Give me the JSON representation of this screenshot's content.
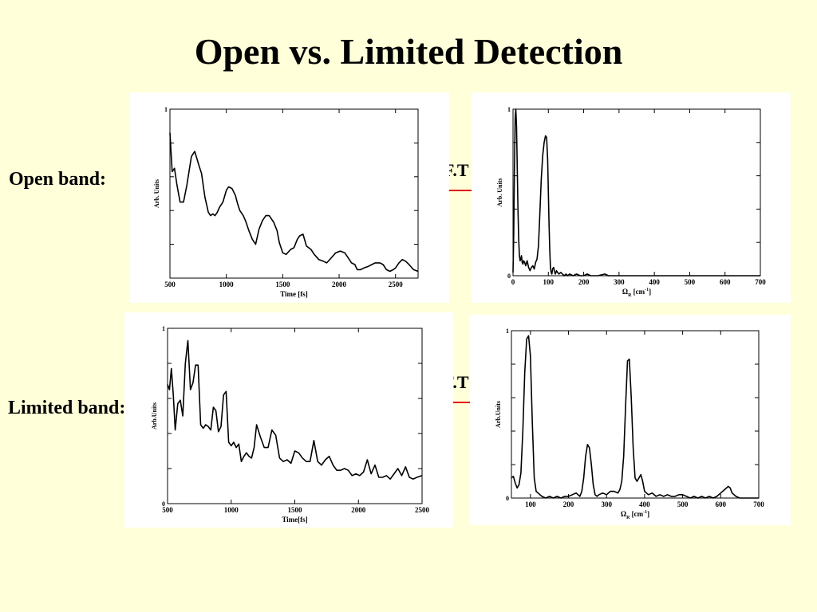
{
  "title": "Open vs. Limited Detection",
  "rows": [
    {
      "label": "Open band:"
    },
    {
      "label": "Limited band:"
    }
  ],
  "transform_label": "F.T",
  "colors": {
    "background": "#ffffd9",
    "arrow": "#e01010",
    "line": "#000000"
  },
  "chart_data": [
    {
      "type": "line",
      "xlabel": "Time [fs]",
      "ylabel": "Arb. Units",
      "xlim": [
        500,
        2700
      ],
      "ylim": [
        0,
        1
      ],
      "xticks": [
        500,
        1000,
        1500,
        2000,
        2500
      ],
      "ytick_labels": [
        "1"
      ],
      "series": [
        {
          "x": [
            500,
            520,
            540,
            560,
            590,
            620,
            650,
            690,
            720,
            760,
            780,
            810,
            840,
            860,
            880,
            900,
            920,
            940,
            970,
            1000,
            1020,
            1050,
            1080,
            1100,
            1120,
            1150,
            1170,
            1200,
            1230,
            1260,
            1290,
            1320,
            1350,
            1380,
            1420,
            1450,
            1470,
            1500,
            1530,
            1570,
            1600,
            1630,
            1650,
            1680,
            1710,
            1750,
            1780,
            1820,
            1860,
            1890,
            1930,
            1970,
            2010,
            2050,
            2080,
            2110,
            2140,
            2160,
            2190,
            2220,
            2260,
            2290,
            2320,
            2360,
            2390,
            2420,
            2450,
            2480,
            2500,
            2530,
            2560,
            2590,
            2620,
            2660,
            2700
          ],
          "y": [
            0.86,
            0.63,
            0.65,
            0.56,
            0.45,
            0.45,
            0.55,
            0.72,
            0.75,
            0.66,
            0.62,
            0.48,
            0.39,
            0.37,
            0.38,
            0.37,
            0.39,
            0.42,
            0.45,
            0.52,
            0.54,
            0.53,
            0.49,
            0.44,
            0.4,
            0.37,
            0.34,
            0.28,
            0.23,
            0.2,
            0.29,
            0.34,
            0.37,
            0.37,
            0.33,
            0.28,
            0.21,
            0.15,
            0.14,
            0.17,
            0.18,
            0.23,
            0.25,
            0.26,
            0.19,
            0.17,
            0.14,
            0.11,
            0.1,
            0.09,
            0.12,
            0.15,
            0.16,
            0.15,
            0.12,
            0.09,
            0.08,
            0.05,
            0.05,
            0.06,
            0.07,
            0.08,
            0.09,
            0.09,
            0.08,
            0.05,
            0.04,
            0.05,
            0.06,
            0.09,
            0.11,
            0.1,
            0.08,
            0.05,
            0.04
          ]
        }
      ]
    },
    {
      "type": "line",
      "xlabel": "ΩR [cm-1]",
      "ylabel": "Arb. Units",
      "xlim": [
        0,
        700
      ],
      "ylim": [
        0,
        1
      ],
      "xticks": [
        0,
        100,
        200,
        300,
        400,
        500,
        600,
        700
      ],
      "ytick_labels": [
        "0",
        "1"
      ],
      "series": [
        {
          "x": [
            0,
            2,
            4,
            6,
            8,
            10,
            12,
            14,
            16,
            18,
            20,
            22,
            24,
            26,
            28,
            30,
            33,
            36,
            40,
            44,
            48,
            52,
            56,
            60,
            64,
            68,
            72,
            76,
            80,
            84,
            88,
            92,
            95,
            98,
            100,
            102,
            104,
            106,
            108,
            110,
            112,
            115,
            118,
            120,
            123,
            126,
            130,
            135,
            140,
            145,
            150,
            155,
            160,
            170,
            180,
            190,
            200,
            210,
            220,
            240,
            260,
            270,
            280,
            300,
            320,
            350,
            380,
            400,
            450,
            500,
            550,
            600,
            650,
            700
          ],
          "y": [
            0.02,
            0.25,
            0.65,
            0.95,
            1.0,
            0.9,
            0.65,
            0.4,
            0.22,
            0.12,
            0.09,
            0.1,
            0.12,
            0.08,
            0.07,
            0.09,
            0.08,
            0.06,
            0.09,
            0.05,
            0.03,
            0.05,
            0.06,
            0.04,
            0.08,
            0.1,
            0.18,
            0.38,
            0.58,
            0.72,
            0.8,
            0.84,
            0.83,
            0.7,
            0.5,
            0.3,
            0.15,
            0.05,
            0.02,
            0.01,
            0.04,
            0.05,
            0.02,
            0.01,
            0.03,
            0.02,
            0.01,
            0.02,
            0.01,
            0.0,
            0.01,
            0.0,
            0.01,
            0.0,
            0.01,
            0.0,
            0.0,
            0.01,
            0.0,
            0.0,
            0.01,
            0.0,
            0.0,
            0.0,
            0.0,
            0.0,
            0.0,
            0.0,
            0.0,
            0.0,
            0.0,
            0.0,
            0.0,
            0.0
          ]
        }
      ]
    },
    {
      "type": "line",
      "xlabel": "Time[fs]",
      "ylabel": "Arb.Units",
      "xlim": [
        500,
        2500
      ],
      "ylim": [
        0,
        1
      ],
      "xticks": [
        500,
        1000,
        1500,
        2000,
        2500
      ],
      "ytick_labels": [
        "0",
        "1"
      ],
      "series": [
        {
          "x": [
            500,
            515,
            530,
            545,
            560,
            580,
            600,
            620,
            640,
            660,
            680,
            700,
            720,
            740,
            760,
            780,
            800,
            820,
            840,
            860,
            880,
            900,
            920,
            940,
            960,
            980,
            1000,
            1020,
            1040,
            1060,
            1080,
            1100,
            1120,
            1140,
            1160,
            1180,
            1200,
            1230,
            1260,
            1290,
            1320,
            1350,
            1380,
            1410,
            1440,
            1470,
            1500,
            1530,
            1560,
            1590,
            1620,
            1650,
            1680,
            1710,
            1740,
            1770,
            1800,
            1830,
            1860,
            1890,
            1920,
            1950,
            1980,
            2010,
            2040,
            2070,
            2100,
            2130,
            2160,
            2190,
            2220,
            2250,
            2280,
            2310,
            2340,
            2370,
            2400,
            2430,
            2460,
            2500
          ],
          "y": [
            0.68,
            0.65,
            0.77,
            0.62,
            0.42,
            0.57,
            0.59,
            0.5,
            0.8,
            0.93,
            0.65,
            0.69,
            0.79,
            0.79,
            0.45,
            0.43,
            0.45,
            0.44,
            0.42,
            0.55,
            0.53,
            0.41,
            0.44,
            0.62,
            0.64,
            0.35,
            0.33,
            0.35,
            0.32,
            0.34,
            0.24,
            0.27,
            0.29,
            0.27,
            0.26,
            0.32,
            0.45,
            0.38,
            0.32,
            0.32,
            0.42,
            0.39,
            0.26,
            0.24,
            0.25,
            0.23,
            0.3,
            0.29,
            0.26,
            0.24,
            0.24,
            0.36,
            0.24,
            0.22,
            0.25,
            0.27,
            0.22,
            0.19,
            0.19,
            0.2,
            0.19,
            0.16,
            0.17,
            0.16,
            0.18,
            0.25,
            0.17,
            0.22,
            0.15,
            0.15,
            0.16,
            0.14,
            0.17,
            0.2,
            0.16,
            0.21,
            0.15,
            0.14,
            0.15,
            0.16
          ]
        }
      ]
    },
    {
      "type": "line",
      "xlabel": "ΩR [cm-1]",
      "ylabel": "Arb.Units",
      "xlim": [
        50,
        700
      ],
      "ylim": [
        0,
        1
      ],
      "xticks": [
        100,
        200,
        300,
        400,
        500,
        600,
        700
      ],
      "ytick_labels": [
        "0",
        "1"
      ],
      "series": [
        {
          "x": [
            50,
            55,
            60,
            65,
            70,
            75,
            80,
            85,
            90,
            95,
            100,
            105,
            110,
            115,
            120,
            125,
            130,
            140,
            150,
            160,
            170,
            180,
            190,
            200,
            210,
            220,
            230,
            235,
            240,
            245,
            250,
            255,
            260,
            265,
            270,
            275,
            280,
            290,
            300,
            310,
            320,
            330,
            335,
            340,
            345,
            350,
            355,
            360,
            365,
            370,
            375,
            380,
            385,
            390,
            395,
            400,
            410,
            420,
            430,
            440,
            450,
            460,
            470,
            480,
            490,
            500,
            510,
            520,
            530,
            540,
            550,
            560,
            570,
            580,
            590,
            600,
            605,
            610,
            615,
            620,
            625,
            630,
            640,
            650,
            660,
            670,
            680,
            690,
            700
          ],
          "y": [
            0.12,
            0.13,
            0.09,
            0.06,
            0.08,
            0.15,
            0.4,
            0.75,
            0.95,
            0.97,
            0.85,
            0.45,
            0.12,
            0.04,
            0.03,
            0.02,
            0.01,
            0.0,
            0.01,
            0.0,
            0.01,
            0.0,
            0.01,
            0.01,
            0.02,
            0.03,
            0.01,
            0.04,
            0.12,
            0.25,
            0.32,
            0.3,
            0.2,
            0.08,
            0.02,
            0.01,
            0.02,
            0.03,
            0.02,
            0.04,
            0.04,
            0.03,
            0.05,
            0.1,
            0.25,
            0.55,
            0.82,
            0.83,
            0.6,
            0.3,
            0.12,
            0.1,
            0.12,
            0.14,
            0.1,
            0.04,
            0.02,
            0.03,
            0.01,
            0.02,
            0.01,
            0.02,
            0.01,
            0.01,
            0.02,
            0.02,
            0.01,
            0.0,
            0.01,
            0.0,
            0.01,
            0.0,
            0.01,
            0.0,
            0.01,
            0.03,
            0.04,
            0.05,
            0.06,
            0.07,
            0.06,
            0.03,
            0.01,
            0.0,
            0.0,
            0.0,
            0.0,
            0.0,
            0.0
          ]
        }
      ]
    }
  ]
}
